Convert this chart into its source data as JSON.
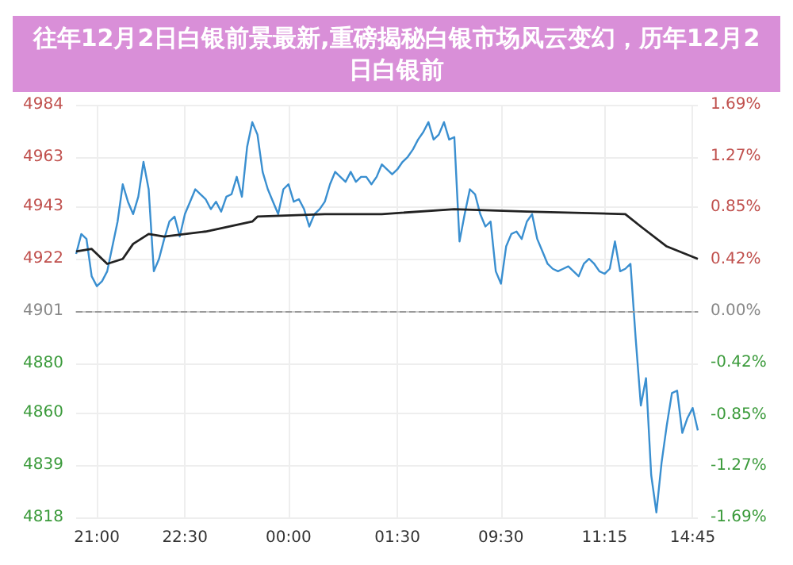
{
  "chart_data": {
    "type": "line",
    "title": "往年12月2日白银前景最新,重磅揭秘白银市场风云变幻，历年12月2日白银前",
    "categories": [
      null,
      null,
      null,
      null,
      "21:00",
      null,
      null,
      null,
      null,
      null,
      null,
      null,
      null,
      null,
      null,
      null,
      null,
      null,
      null,
      null,
      null,
      "22:30",
      null,
      null,
      null,
      null,
      null,
      null,
      null,
      null,
      null,
      null,
      null,
      null,
      null,
      null,
      null,
      null,
      null,
      null,
      null,
      "00:00",
      null,
      null,
      null,
      null,
      null,
      null,
      null,
      null,
      null,
      null,
      null,
      null,
      null,
      null,
      null,
      null,
      null,
      null,
      null,
      null,
      "01:30",
      null,
      null,
      null,
      null,
      null,
      null,
      null,
      null,
      null,
      null,
      null,
      null,
      null,
      null,
      null,
      null,
      null,
      null,
      null,
      "09:30",
      null,
      null,
      null,
      null,
      null,
      null,
      null,
      null,
      null,
      null,
      null,
      null,
      null,
      null,
      null,
      null,
      null,
      null,
      null,
      "11:15",
      null,
      null,
      null,
      null,
      null,
      null,
      null,
      null,
      null,
      null,
      null,
      null,
      null,
      null,
      null,
      null,
      "14:45",
      null
    ],
    "ylim": [
      4818,
      4984
    ],
    "yticks": [
      {
        "value": 4818,
        "label": "4818"
      },
      {
        "value": 4839,
        "label": "4839"
      },
      {
        "value": 4860,
        "label": "4860"
      },
      {
        "value": 4880,
        "label": "4880"
      },
      {
        "value": 4901,
        "label": "4901"
      },
      {
        "value": 4922,
        "label": "4922"
      },
      {
        "value": 4943,
        "label": "4943"
      },
      {
        "value": 4963,
        "label": "4963"
      },
      {
        "value": 4984,
        "label": "4984"
      }
    ],
    "y2lim": [
      -1.69,
      1.69
    ],
    "y2ticks": [
      {
        "value": -1.69,
        "label": "-1.69%"
      },
      {
        "value": -1.27,
        "label": "-1.27%"
      },
      {
        "value": -0.85,
        "label": "-0.85%"
      },
      {
        "value": -0.42,
        "label": "-0.42%"
      },
      {
        "value": 0,
        "label": "0.00%"
      },
      {
        "value": 0.42,
        "label": "0.42%"
      },
      {
        "value": 0.85,
        "label": "0.85%"
      },
      {
        "value": 1.27,
        "label": "1.27%"
      },
      {
        "value": 1.69,
        "label": "1.69%"
      }
    ],
    "grid": true,
    "marker": "none",
    "line_style": "solid",
    "ref_lines": [
      {
        "axis": "y",
        "value": 4901,
        "line_style": "dashed",
        "color": "#999999"
      }
    ],
    "series": [
      {
        "color": "#3a8fd0",
        "values": [
          4924,
          4932,
          4930,
          4915,
          4911,
          4913,
          4917,
          4927,
          4937,
          4952,
          4945,
          4940,
          4947,
          4961,
          4950,
          4917,
          4922,
          4930,
          4937,
          4939,
          4931,
          4940,
          4945,
          4950,
          4948,
          4946,
          4942,
          4945,
          4941,
          4947,
          4948,
          4955,
          4947,
          4967,
          4977,
          4972,
          4957,
          4950,
          4945,
          4940,
          4950,
          4952,
          4945,
          4946,
          4942,
          4935,
          4940,
          4942,
          4945,
          4952,
          4957,
          4955,
          4953,
          4957,
          4953,
          4955,
          4955,
          4952,
          4955,
          4960,
          4958,
          4956,
          4958,
          4961,
          4963,
          4966,
          4970,
          4973,
          4977,
          4970,
          4972,
          4977,
          4970,
          4971,
          4929,
          4940,
          4950,
          4948,
          4940,
          4935,
          4937,
          4917,
          4912,
          4927,
          4932,
          4933,
          4930,
          4937,
          4940,
          4930,
          4925,
          4920,
          4918,
          4917,
          4918,
          4919,
          4917,
          4915,
          4920,
          4922,
          4920,
          4917,
          4916,
          4918,
          4929,
          4917,
          4918,
          4920,
          4890,
          4863,
          4874,
          4835,
          4820,
          4840,
          4855,
          4868,
          4869,
          4852,
          4858,
          4862,
          4853
        ]
      },
      {
        "color": "#222222",
        "values": [
          4925,
          null,
          null,
          4926,
          null,
          null,
          4920,
          null,
          null,
          4922,
          null,
          4928,
          null,
          null,
          4932,
          null,
          null,
          4931,
          null,
          null,
          null,
          null,
          null,
          null,
          null,
          4933,
          null,
          null,
          null,
          null,
          null,
          null,
          null,
          null,
          4937,
          4939,
          null,
          null,
          null,
          null,
          null,
          null,
          null,
          null,
          null,
          null,
          null,
          null,
          4940,
          null,
          null,
          null,
          null,
          null,
          null,
          null,
          null,
          null,
          null,
          4940,
          null,
          null,
          null,
          null,
          null,
          null,
          null,
          null,
          null,
          null,
          null,
          null,
          null,
          4942,
          null,
          null,
          null,
          null,
          null,
          null,
          null,
          null,
          null,
          null,
          null,
          null,
          null,
          4941,
          null,
          null,
          null,
          null,
          null,
          null,
          null,
          null,
          null,
          null,
          null,
          null,
          null,
          null,
          null,
          null,
          null,
          null,
          4940,
          null,
          null,
          4935,
          null,
          null,
          null,
          null,
          4927,
          null,
          null,
          null,
          null,
          null,
          4922
        ]
      }
    ]
  }
}
